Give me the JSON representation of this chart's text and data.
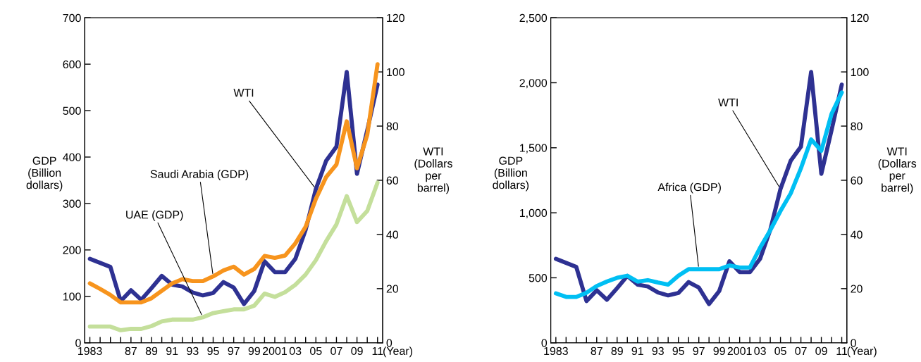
{
  "chart_data": [
    {
      "type": "line",
      "x": [
        1983,
        1984,
        1985,
        1986,
        1987,
        1988,
        1989,
        1990,
        1991,
        1992,
        1993,
        1994,
        1995,
        1996,
        1997,
        1998,
        1999,
        2000,
        2001,
        2002,
        2003,
        2004,
        2005,
        2006,
        2007,
        2008,
        2009,
        2010,
        2011
      ],
      "xlim": [
        1982.5,
        2011.5
      ],
      "xticks": [
        {
          "value": 1983,
          "label": "1983"
        },
        {
          "value": 1984,
          "label": null
        },
        {
          "value": 1985,
          "label": null
        },
        {
          "value": 1986,
          "label": null
        },
        {
          "value": 1987,
          "label": "87"
        },
        {
          "value": 1988,
          "label": null
        },
        {
          "value": 1989,
          "label": "89"
        },
        {
          "value": 1990,
          "label": null
        },
        {
          "value": 1991,
          "label": "91"
        },
        {
          "value": 1992,
          "label": null
        },
        {
          "value": 1993,
          "label": "93"
        },
        {
          "value": 1994,
          "label": null
        },
        {
          "value": 1995,
          "label": "95"
        },
        {
          "value": 1996,
          "label": null
        },
        {
          "value": 1997,
          "label": "97"
        },
        {
          "value": 1998,
          "label": null
        },
        {
          "value": 1999,
          "label": "99"
        },
        {
          "value": 2000,
          "label": null
        },
        {
          "value": 2001,
          "label": "2001"
        },
        {
          "value": 2002,
          "label": null
        },
        {
          "value": 2003,
          "label": "03"
        },
        {
          "value": 2004,
          "label": null
        },
        {
          "value": 2005,
          "label": "05"
        },
        {
          "value": 2006,
          "label": null
        },
        {
          "value": 2007,
          "label": "07"
        },
        {
          "value": 2008,
          "label": null
        },
        {
          "value": 2009,
          "label": "09"
        },
        {
          "value": 2010,
          "label": null
        },
        {
          "value": 2011,
          "label": "11"
        }
      ],
      "xlabel": "(Year)",
      "ylabel": "GDP\n(Billion\ndollars)",
      "y2label": "WTI\n(Dollars\nper\nbarrel)",
      "ylim": [
        0,
        700
      ],
      "yticks": [
        0,
        100,
        200,
        300,
        400,
        500,
        600,
        700
      ],
      "y2lim": [
        0,
        120
      ],
      "y2ticks": [
        0,
        20,
        40,
        60,
        80,
        100,
        120
      ],
      "grid": false,
      "legend": false,
      "annotations": [
        {
          "text": "Saudi Arabia (GDP)",
          "x": 1995,
          "y": 143
        },
        {
          "text": "UAE (GDP)",
          "x": 1994,
          "y": 55
        },
        {
          "text": "WTI",
          "x": 2005,
          "y": 331
        }
      ],
      "series": [
        {
          "color": "#f7941d",
          "values": [
            128,
            116,
            103,
            87,
            87,
            87,
            96,
            112,
            128,
            137,
            133,
            133,
            143,
            156,
            164,
            147,
            159,
            187,
            183,
            188,
            214,
            250,
            310,
            357,
            384,
            477,
            376,
            448,
            600
          ]
        },
        {
          "color": "#c4df9b",
          "values": [
            35,
            35,
            35,
            27,
            30,
            30,
            36,
            46,
            50,
            50,
            50,
            55,
            64,
            68,
            72,
            72,
            80,
            106,
            99,
            109,
            125,
            147,
            178,
            219,
            255,
            316,
            260,
            284,
            345
          ]
        },
        {
          "color": "#2e3192",
          "axis": "y2",
          "values": [
            31.0,
            29.5,
            28.0,
            15.4,
            19.4,
            15.9,
            20.2,
            24.7,
            21.5,
            20.8,
            18.6,
            17.5,
            18.4,
            22.4,
            20.4,
            14.3,
            19.1,
            30.1,
            26.1,
            26.1,
            31.0,
            41.7,
            56.8,
            67.2,
            72.4,
            100.0,
            62.4,
            78.5,
            95.3
          ]
        }
      ]
    },
    {
      "type": "line",
      "x": [
        1983,
        1984,
        1985,
        1986,
        1987,
        1988,
        1989,
        1990,
        1991,
        1992,
        1993,
        1994,
        1995,
        1996,
        1997,
        1998,
        1999,
        2000,
        2001,
        2002,
        2003,
        2004,
        2005,
        2006,
        2007,
        2008,
        2009,
        2010,
        2011
      ],
      "xlim": [
        1982.5,
        2011.5
      ],
      "xticks": [
        {
          "value": 1983,
          "label": "1983"
        },
        {
          "value": 1984,
          "label": null
        },
        {
          "value": 1985,
          "label": null
        },
        {
          "value": 1986,
          "label": null
        },
        {
          "value": 1987,
          "label": "87"
        },
        {
          "value": 1988,
          "label": null
        },
        {
          "value": 1989,
          "label": "89"
        },
        {
          "value": 1990,
          "label": null
        },
        {
          "value": 1991,
          "label": "91"
        },
        {
          "value": 1992,
          "label": null
        },
        {
          "value": 1993,
          "label": "93"
        },
        {
          "value": 1994,
          "label": null
        },
        {
          "value": 1995,
          "label": "95"
        },
        {
          "value": 1996,
          "label": null
        },
        {
          "value": 1997,
          "label": "97"
        },
        {
          "value": 1998,
          "label": null
        },
        {
          "value": 1999,
          "label": "99"
        },
        {
          "value": 2000,
          "label": null
        },
        {
          "value": 2001,
          "label": "2001"
        },
        {
          "value": 2002,
          "label": null
        },
        {
          "value": 2003,
          "label": "03"
        },
        {
          "value": 2004,
          "label": null
        },
        {
          "value": 2005,
          "label": "05"
        },
        {
          "value": 2006,
          "label": null
        },
        {
          "value": 2007,
          "label": "07"
        },
        {
          "value": 2008,
          "label": null
        },
        {
          "value": 2009,
          "label": "09"
        },
        {
          "value": 2010,
          "label": null
        },
        {
          "value": 2011,
          "label": "11"
        }
      ],
      "xlabel": "(Year)",
      "ylabel": "GDP\n(Billion\ndollars)",
      "y2label": "WTI\n(Dollars\nper\nbarrel)",
      "ylim": [
        0,
        2500
      ],
      "yticks": [
        0,
        {
          "value": 500,
          "label": "500"
        },
        {
          "value": 1000,
          "label": "1,000"
        },
        {
          "value": 1500,
          "label": "1,500"
        },
        {
          "value": 2000,
          "label": "2,000"
        },
        {
          "value": 2500,
          "label": "2,500"
        }
      ],
      "y2lim": [
        0,
        120
      ],
      "y2ticks": [
        0,
        20,
        40,
        60,
        80,
        100,
        120
      ],
      "grid": false,
      "legend": false,
      "annotations": [
        {
          "text": "Africa (GDP)",
          "x": 1997,
          "y": 566
        },
        {
          "text": "WTI",
          "x": 2005,
          "y": 1183
        }
      ],
      "series": [
        {
          "color": "#00bff3",
          "values": [
            380,
            353,
            353,
            385,
            437,
            471,
            500,
            516,
            471,
            482,
            464,
            448,
            516,
            566,
            566,
            566,
            566,
            595,
            579,
            579,
            731,
            866,
            1014,
            1149,
            1342,
            1564,
            1477,
            1760,
            1925
          ]
        },
        {
          "color": "#2e3192",
          "axis": "y2",
          "values": [
            31.0,
            29.5,
            28.0,
            15.4,
            19.4,
            15.9,
            20.2,
            24.7,
            21.5,
            20.8,
            18.6,
            17.5,
            18.4,
            22.4,
            20.4,
            14.3,
            19.1,
            30.1,
            26.1,
            26.1,
            31.0,
            41.7,
            56.8,
            67.2,
            72.4,
            100.0,
            62.4,
            78.5,
            95.3
          ]
        }
      ]
    }
  ]
}
